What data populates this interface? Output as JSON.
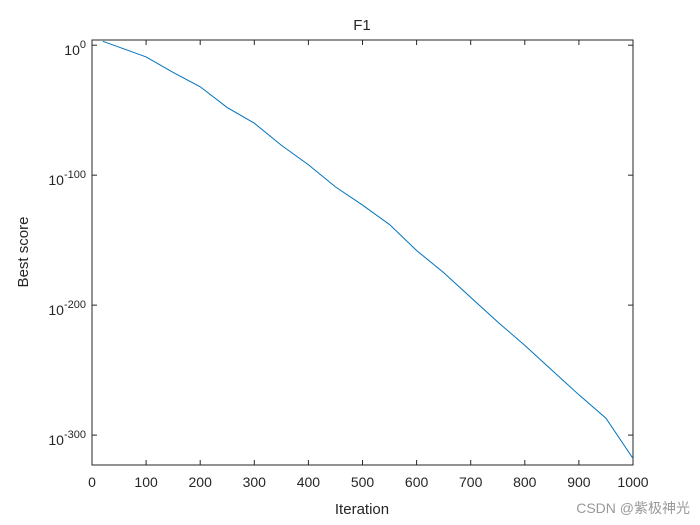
{
  "chart_data": {
    "type": "line",
    "title": "F1",
    "x_label": "Iteration",
    "y_label": "Best score",
    "watermark": "CSDN @紫极神光",
    "x": [
      20,
      100,
      150,
      200,
      250,
      300,
      350,
      400,
      450,
      500,
      550,
      600,
      650,
      700,
      750,
      800,
      850,
      900,
      950,
      1000
    ],
    "series": [
      {
        "name": "Best score",
        "color": "#0072bd",
        "values": [
          1000.0,
          1e-09,
          1e-21,
          1e-32,
          1e-48,
          1e-60,
          1e-77,
          1e-92,
          1e-109,
          1e-123,
          1e-138,
          1e-158,
          1e-175,
          1e-194,
          1e-213,
          1e-231,
          1e-250,
          1e-269,
          1e-287,
          1e-318
        ]
      }
    ],
    "xlim": [
      0,
      1000
    ],
    "xticks": [
      0,
      100,
      200,
      300,
      400,
      500,
      600,
      700,
      800,
      900,
      1000
    ],
    "ylim": [
      1e-323,
      10000.0
    ],
    "y_scale": "log",
    "yticks": [
      {
        "value": 1e-300,
        "label": "10^-300"
      },
      {
        "value": 1e-200,
        "label": "10^-200"
      },
      {
        "value": 1e-100,
        "label": "10^-100"
      },
      {
        "value": 1,
        "label": "10^0"
      }
    ],
    "grid": false
  }
}
